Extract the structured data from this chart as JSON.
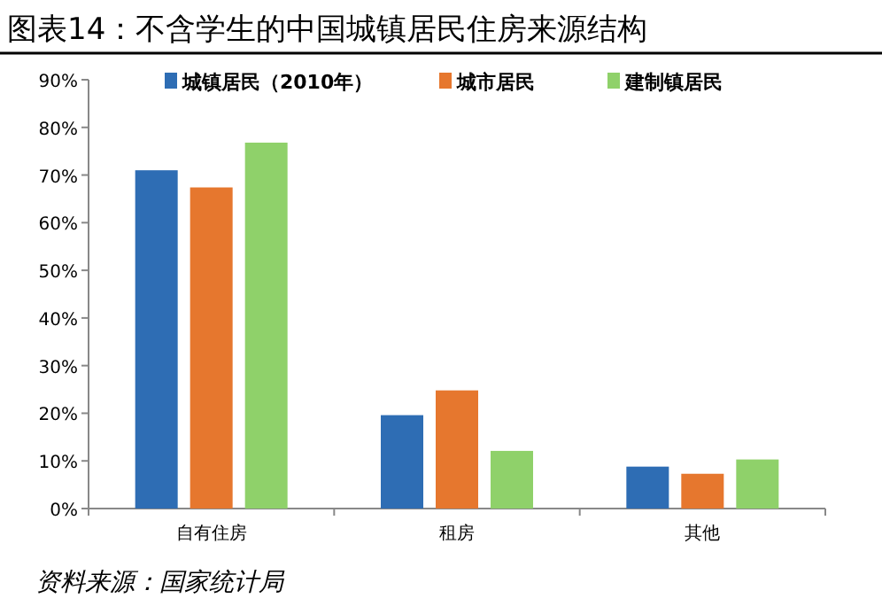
{
  "chart_data": {
    "type": "bar",
    "title": "图表14：不含学生的中国城镇居民住房来源结构",
    "categories": [
      "自有住房",
      "租房",
      "其他"
    ],
    "series": [
      {
        "name": "城镇居民（2010年）",
        "color": "#2e6db4",
        "values": [
          71,
          19.6,
          8.8
        ]
      },
      {
        "name": "城市居民",
        "color": "#e6772e",
        "values": [
          67.4,
          24.8,
          7.3
        ]
      },
      {
        "name": "建制镇居民",
        "color": "#8fd16a",
        "values": [
          76.8,
          12.1,
          10.3
        ]
      }
    ],
    "ylim": [
      0,
      90
    ],
    "yticks": [
      {
        "value": 0,
        "label": "0%"
      },
      {
        "value": 10,
        "label": "10%"
      },
      {
        "value": 20,
        "label": "20%"
      },
      {
        "value": 30,
        "label": "30%"
      },
      {
        "value": 40,
        "label": "40%"
      },
      {
        "value": 50,
        "label": "50%"
      },
      {
        "value": 60,
        "label": "60%"
      },
      {
        "value": 70,
        "label": "70%"
      },
      {
        "value": 80,
        "label": "80%"
      },
      {
        "value": 90,
        "label": "90%"
      }
    ],
    "grid": false,
    "legend": "top",
    "annotations": [
      "资料来源：国家统计局"
    ]
  }
}
